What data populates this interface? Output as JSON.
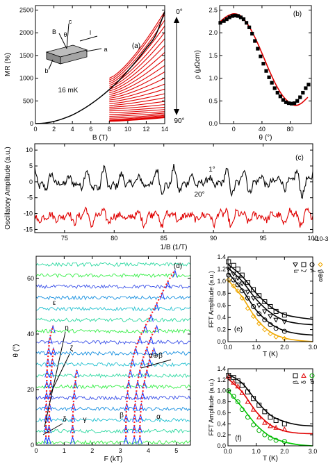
{
  "chart_data": [
    {
      "id": "a",
      "type": "line",
      "panel_label": "(a)",
      "xlabel": "B (T)",
      "ylabel": "MR (%)",
      "xlim": [
        0,
        14
      ],
      "ylim": [
        0,
        2600
      ],
      "xticks": [
        "0",
        "2",
        "4",
        "6",
        "8",
        "10",
        "12",
        "14"
      ],
      "yticks": [
        "0",
        "500",
        "1000",
        "1500",
        "2000",
        "2500"
      ],
      "annotations": {
        "temperature": "16 mK",
        "angle_top": "0°",
        "angle_bottom": "90°",
        "inset_c": "c",
        "inset_B": "B",
        "inset_theta": "θ",
        "inset_I": "I",
        "inset_a": "a",
        "inset_b": "b"
      },
      "series": [
        {
          "color": "#000000",
          "x": [
            0,
            1,
            2,
            3,
            4,
            5,
            6,
            7,
            8,
            9,
            10,
            11,
            12,
            13,
            14
          ],
          "y": [
            0,
            12,
            48,
            110,
            190,
            300,
            430,
            580,
            750,
            940,
            1160,
            1400,
            1660,
            1940,
            2470
          ]
        }
      ],
      "fan": {
        "color": "#e00000",
        "x_start": 8,
        "x_end": 14,
        "start_values": [
          1000,
          960,
          920,
          880,
          840,
          800,
          760,
          720,
          680,
          640,
          600,
          560,
          520,
          480,
          440,
          400,
          360,
          320,
          280,
          240,
          200,
          160,
          120,
          90,
          70,
          60,
          55,
          50
        ],
        "end_values": [
          2470,
          2400,
          2280,
          2150,
          2010,
          1870,
          1720,
          1570,
          1420,
          1280,
          1140,
          1000,
          870,
          760,
          660,
          570,
          490,
          420,
          360,
          310,
          265,
          230,
          200,
          180,
          160,
          150,
          140,
          130
        ]
      }
    },
    {
      "id": "b",
      "type": "scatter",
      "panel_label": "(b)",
      "xlabel": "θ (°)",
      "ylabel": "ρ (μΩcm)",
      "xlim": [
        -20,
        110
      ],
      "ylim": [
        0,
        2.6
      ],
      "xticks": [
        "0",
        "40",
        "80"
      ],
      "yticks": [
        "0.0",
        "0.5",
        "1.0",
        "1.5",
        "2.0",
        "2.5"
      ],
      "points": {
        "x": [
          -19,
          -14,
          -10,
          -6,
          -2,
          2,
          6,
          10,
          14,
          18,
          22,
          26,
          30,
          34,
          38,
          42,
          46,
          50,
          54,
          58,
          62,
          66,
          70,
          74,
          78,
          82,
          86,
          90,
          94,
          98,
          102,
          106
        ],
        "y": [
          2.22,
          2.26,
          2.3,
          2.34,
          2.37,
          2.38,
          2.37,
          2.34,
          2.3,
          2.22,
          2.12,
          1.98,
          1.82,
          1.65,
          1.48,
          1.32,
          1.16,
          1.02,
          0.9,
          0.78,
          0.68,
          0.6,
          0.52,
          0.47,
          0.45,
          0.44,
          0.45,
          0.5,
          0.58,
          0.68,
          0.78,
          0.86
        ]
      },
      "fit": {
        "color": "#e00000",
        "x": [
          -19,
          -10,
          0,
          10,
          20,
          30,
          40,
          50,
          60,
          70,
          80,
          88,
          96,
          105
        ],
        "y": [
          2.25,
          2.36,
          2.42,
          2.37,
          2.18,
          1.9,
          1.55,
          1.18,
          0.85,
          0.6,
          0.45,
          0.4,
          0.45,
          0.58
        ]
      }
    },
    {
      "id": "c",
      "type": "line",
      "panel_label": "(c)",
      "xlabel": "1/B (1/T)",
      "ylabel": "Oscillatory Amplitude (a.u.)",
      "x_multiplier": "x10-3",
      "xlim": [
        72,
        100
      ],
      "ylim": [
        -16,
        12
      ],
      "xticks": [
        "75",
        "80",
        "85",
        "90",
        "95",
        "100"
      ],
      "yticks": [
        "-15",
        "-10",
        "-5",
        "0",
        "5",
        "10"
      ],
      "series": [
        {
          "name": "1°",
          "color": "#000000",
          "offset": 0,
          "amplitude": 4.5
        },
        {
          "name": "20°",
          "color": "#e00000",
          "offset": -11,
          "amplitude": 3.0
        }
      ]
    },
    {
      "id": "d",
      "type": "line",
      "panel_label": "(d)",
      "xlabel": "F (kT)",
      "ylabel": "θ (°)",
      "xlim": [
        0,
        5.5
      ],
      "ylim": [
        0,
        68
      ],
      "xticks": [
        "0",
        "1",
        "2",
        "3",
        "4",
        "5"
      ],
      "yticks": [
        "0",
        "20",
        "40",
        "60"
      ],
      "branch_labels": {
        "epsilon": "ε",
        "eta": "η",
        "zeta": "ζ",
        "delta": "δ",
        "gamma": "γ",
        "beta": "β",
        "alpha": "α",
        "alphabeta": "α⊕β"
      },
      "angles": [
        0,
        4,
        8,
        12,
        16,
        20,
        24,
        28,
        32,
        36,
        40,
        44,
        48,
        52,
        56,
        60,
        64
      ],
      "branches": [
        {
          "name": "δ",
          "x": [
            0.35,
            0.35,
            0.36,
            0.36,
            0.37,
            0.38,
            0.39,
            0.42,
            0.45,
            0.5,
            0.6
          ]
        },
        {
          "name": "η",
          "x": [
            0.45,
            0.46,
            0.47,
            0.48,
            0.5,
            0.52,
            0.55,
            0.58,
            0.62
          ]
        },
        {
          "name": "γ",
          "x": [
            1.3,
            1.3,
            1.31,
            1.33,
            1.36,
            1.4,
            1.45
          ]
        },
        {
          "name": "β",
          "x": [
            3.2,
            3.2,
            3.21,
            3.23,
            3.26,
            3.3,
            3.36,
            3.44,
            3.55,
            3.7,
            3.9,
            4.1,
            4.3,
            4.5,
            4.7,
            4.95
          ]
        },
        {
          "name": "α",
          "x": [
            3.5,
            3.5,
            3.51,
            3.53,
            3.57,
            3.62,
            3.7,
            3.8,
            3.95,
            4.1,
            4.3
          ]
        },
        {
          "name": "α⊕β",
          "x": [
            3.7,
            3.7,
            3.72,
            3.75,
            3.8,
            3.86,
            3.95,
            4.05,
            4.2
          ]
        }
      ]
    },
    {
      "id": "e",
      "type": "scatter",
      "panel_label": "(e)",
      "xlabel": "T (K)",
      "ylabel": "FFT Amplitude (a.u.)",
      "xlim": [
        0,
        3.0
      ],
      "ylim": [
        0,
        1.4
      ],
      "xticks": [
        "0.0",
        "1.0",
        "2.0",
        "3.0"
      ],
      "yticks": [
        "0.0",
        "0.2",
        "0.4",
        "0.6",
        "0.8",
        "1.0",
        "1.2",
        "1.4"
      ],
      "series": [
        {
          "name": "η",
          "marker": "triangle-down",
          "color": "#000000",
          "x": [
            0.02,
            0.2,
            0.35,
            0.5,
            0.7,
            0.9,
            1.1,
            1.3,
            1.5,
            1.7,
            2.0
          ],
          "y": [
            1.2,
            1.12,
            1.05,
            0.96,
            0.82,
            0.72,
            0.6,
            0.5,
            0.42,
            0.36,
            0.33
          ]
        },
        {
          "name": "ζ",
          "marker": "square",
          "color": "#000000",
          "x": [
            0.02,
            0.2,
            0.35,
            0.5,
            0.7,
            0.9,
            1.1,
            1.3,
            1.5,
            1.7,
            2.0
          ],
          "y": [
            1.32,
            1.26,
            1.2,
            1.1,
            0.98,
            0.86,
            0.76,
            0.66,
            0.58,
            0.5,
            0.44
          ]
        },
        {
          "name": "γ",
          "marker": "circle",
          "color": "#000000",
          "x": [
            0.02,
            0.2,
            0.35,
            0.5,
            0.7,
            0.9,
            1.1,
            1.3,
            1.5,
            1.7,
            2.0
          ],
          "y": [
            1.1,
            1.02,
            0.94,
            0.84,
            0.72,
            0.58,
            0.46,
            0.36,
            0.28,
            0.22,
            0.17
          ]
        },
        {
          "name": "α⊕β",
          "marker": "diamond",
          "color": "#f0a800",
          "x": [
            0.02,
            0.2,
            0.35,
            0.5,
            0.7,
            0.9,
            1.1,
            1.3,
            1.5,
            1.7,
            2.0
          ],
          "y": [
            1.02,
            0.92,
            0.84,
            0.72,
            0.55,
            0.42,
            0.3,
            0.2,
            0.13,
            0.08,
            0.05
          ]
        }
      ],
      "fits": [
        {
          "color": "#000000",
          "x": [
            0,
            0.5,
            1,
            1.5,
            2,
            2.5,
            3
          ],
          "y": [
            1.28,
            1.08,
            0.8,
            0.58,
            0.45,
            0.4,
            0.37
          ]
        },
        {
          "color": "#000000",
          "x": [
            0,
            0.5,
            1,
            1.5,
            2,
            2.5,
            3
          ],
          "y": [
            1.22,
            1.0,
            0.7,
            0.48,
            0.35,
            0.3,
            0.28
          ]
        },
        {
          "color": "#000000",
          "x": [
            0,
            0.5,
            1,
            1.5,
            2,
            2.5,
            3
          ],
          "y": [
            1.14,
            0.86,
            0.52,
            0.3,
            0.18,
            0.13,
            0.11
          ]
        },
        {
          "color": "#f0a800",
          "x": [
            0,
            0.5,
            1,
            1.5,
            2,
            2.5,
            3
          ],
          "y": [
            1.02,
            0.74,
            0.38,
            0.16,
            0.06,
            0.02,
            0.0
          ]
        }
      ]
    },
    {
      "id": "f",
      "type": "scatter",
      "panel_label": "(f)",
      "xlabel": "T (K)",
      "ylabel": "FFT Amplitude (a.u.)",
      "xlim": [
        0,
        3.0
      ],
      "ylim": [
        0,
        1.4
      ],
      "xticks": [
        "0.0",
        "1.0",
        "2.0",
        "3.0"
      ],
      "yticks": [
        "0.0",
        "0.2",
        "0.4",
        "0.6",
        "0.8",
        "1.0",
        "1.2",
        "1.4"
      ],
      "series": [
        {
          "name": "β",
          "marker": "square",
          "color": "#000000",
          "x": [
            0.02,
            0.2,
            0.35,
            0.5,
            0.7,
            0.9,
            1.1,
            1.3,
            1.5,
            1.7,
            2.0
          ],
          "y": [
            1.28,
            1.24,
            1.18,
            1.1,
            0.98,
            0.86,
            0.74,
            0.62,
            0.52,
            0.46,
            0.4
          ]
        },
        {
          "name": "δ",
          "marker": "triangle-up",
          "color": "#e00000",
          "x": [
            0.02,
            0.2,
            0.35,
            0.5,
            0.7,
            0.9,
            1.1,
            1.3,
            1.5,
            1.7,
            2.0
          ],
          "y": [
            1.25,
            1.15,
            1.08,
            0.96,
            0.8,
            0.66,
            0.52,
            0.42,
            0.36,
            0.33,
            0.3
          ]
        },
        {
          "name": "α",
          "marker": "circle",
          "color": "#00aa00",
          "x": [
            0.02,
            0.2,
            0.35,
            0.5,
            0.7,
            0.9,
            1.1,
            1.3,
            1.5,
            1.7,
            2.0
          ],
          "y": [
            1.0,
            0.9,
            0.8,
            0.66,
            0.52,
            0.38,
            0.28,
            0.2,
            0.14,
            0.1,
            0.08
          ]
        }
      ],
      "fits": [
        {
          "color": "#000000",
          "x": [
            0,
            0.5,
            1,
            1.5,
            2,
            2.5,
            3
          ],
          "y": [
            1.3,
            1.14,
            0.82,
            0.56,
            0.44,
            0.38,
            0.36
          ]
        },
        {
          "color": "#e00000",
          "x": [
            0,
            0.5,
            1,
            1.5,
            2,
            2.5,
            3
          ],
          "y": [
            1.22,
            0.98,
            0.62,
            0.38,
            0.27,
            0.23,
            0.22
          ]
        },
        {
          "color": "#00cc00",
          "x": [
            0,
            0.5,
            1,
            1.5,
            2,
            2.5,
            3
          ],
          "y": [
            1.0,
            0.7,
            0.38,
            0.17,
            0.07,
            0.02,
            0.0
          ]
        }
      ]
    }
  ]
}
